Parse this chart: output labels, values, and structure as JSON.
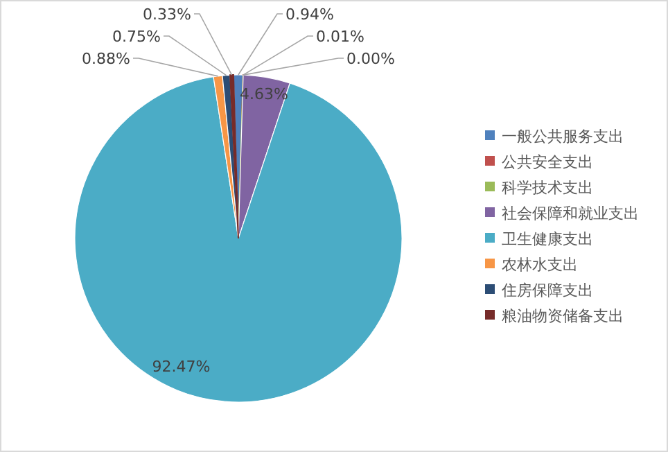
{
  "chart_data": {
    "type": "pie",
    "categories": [
      "一般公共服务支出",
      "公共安全支出",
      "科学技术支出",
      "社会保障和就业支出",
      "卫生健康支出",
      "农林水支出",
      "住房保障支出",
      "粮油物资储备支出"
    ],
    "values": [
      0.94,
      0.01,
      0.0,
      4.63,
      92.47,
      0.88,
      0.75,
      0.33
    ],
    "colors": [
      "#4f81bd",
      "#c0504d",
      "#9bbb59",
      "#8064a2",
      "#4bacc6",
      "#f79646",
      "#2c4d75",
      "#772c2a"
    ],
    "value_labels": [
      "0.94%",
      "0.01%",
      "0.00%",
      "4.63%",
      "92.47%",
      "0.88%",
      "0.75%",
      "0.33%"
    ],
    "legend": "right"
  }
}
